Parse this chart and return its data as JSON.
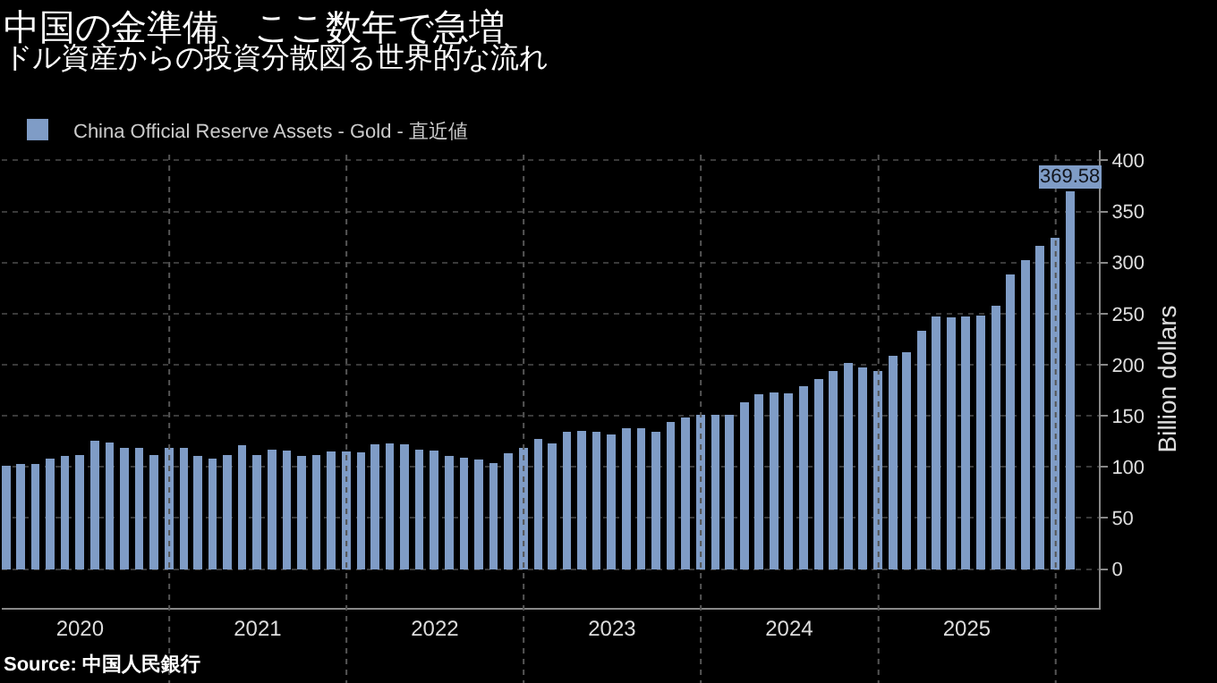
{
  "chart_data": {
    "type": "bar",
    "title": "中国の金準備、ここ数年で急増",
    "subtitle": "ドル資産からの投資分散図る世界的な流れ",
    "ylabel": "Billion dollars",
    "x": [
      "2020-01-31",
      "2020-02-29",
      "2020-03-31",
      "2020-04-30",
      "2020-05-31",
      "2020-06-30",
      "2020-07-31",
      "2020-08-31",
      "2020-09-30",
      "2020-10-31",
      "2020-11-30",
      "2020-12-31",
      "2021-01-31",
      "2021-02-28",
      "2021-03-31",
      "2021-04-30",
      "2021-05-31",
      "2021-06-30",
      "2021-07-31",
      "2021-08-31",
      "2021-09-30",
      "2021-10-31",
      "2021-11-30",
      "2021-12-31",
      "2022-01-31",
      "2022-02-28",
      "2022-03-31",
      "2022-04-30",
      "2022-05-31",
      "2022-06-30",
      "2022-07-31",
      "2022-08-31",
      "2022-09-30",
      "2022-10-31",
      "2022-11-30",
      "2022-12-31",
      "2023-01-31",
      "2023-02-28",
      "2023-03-31",
      "2023-04-30",
      "2023-05-31",
      "2023-06-30",
      "2023-07-31",
      "2023-08-31",
      "2023-09-30",
      "2023-10-31",
      "2023-11-30",
      "2023-12-31",
      "2024-01-31",
      "2024-02-29",
      "2024-03-31",
      "2024-04-30",
      "2024-05-31",
      "2024-06-30",
      "2024-07-31",
      "2024-08-31",
      "2024-09-30",
      "2024-10-31",
      "2024-11-30",
      "2024-12-31",
      "2025-01-31",
      "2025-02-28",
      "2025-03-31",
      "2025-04-30",
      "2025-05-31",
      "2025-06-30",
      "2025-07-31",
      "2025-08-31",
      "2025-09-30",
      "2025-10-31",
      "2025-11-30",
      "2025-12-31",
      "2026-01-31"
    ],
    "series": [
      {
        "name": "China Official Reserve Assets - Gold - 直近値",
        "color": "#7f9cc6",
        "values": [
          101,
          103,
          103,
          108,
          111,
          112,
          126,
          124,
          119,
          119,
          112,
          119,
          119,
          111,
          108,
          112,
          121,
          112,
          117,
          116,
          111,
          112,
          115,
          115,
          114,
          122,
          123,
          122,
          117,
          116,
          111,
          109,
          107,
          104,
          113,
          119,
          127,
          123,
          134,
          135,
          134,
          132,
          138,
          138,
          134,
          144,
          148,
          151,
          151,
          151,
          163,
          171,
          173,
          172,
          179,
          186,
          194,
          202,
          197,
          194,
          209,
          212,
          233,
          247,
          246,
          247,
          248,
          258,
          288,
          302,
          316,
          324,
          369.58
        ],
        "value_labels": [
          null,
          null,
          null,
          null,
          null,
          null,
          null,
          null,
          null,
          null,
          null,
          null,
          null,
          null,
          null,
          null,
          null,
          null,
          null,
          null,
          null,
          null,
          null,
          null,
          null,
          null,
          null,
          null,
          null,
          null,
          null,
          null,
          null,
          null,
          null,
          null,
          null,
          null,
          null,
          null,
          null,
          null,
          null,
          null,
          null,
          null,
          null,
          null,
          null,
          null,
          null,
          null,
          null,
          null,
          null,
          null,
          null,
          null,
          null,
          null,
          null,
          null,
          null,
          null,
          null,
          null,
          null,
          null,
          null,
          null,
          null,
          null,
          "369.58"
        ]
      }
    ],
    "xlim": [
      "2020-01-22",
      "2026-03-31"
    ],
    "xticks": [
      {
        "value": "2020-07-01",
        "label": "2020"
      },
      {
        "value": "2021-01-01",
        "label": null
      },
      {
        "value": "2021-07-02",
        "label": "2021"
      },
      {
        "value": "2022-01-01",
        "label": null
      },
      {
        "value": "2022-07-02",
        "label": "2022"
      },
      {
        "value": "2023-01-01",
        "label": null
      },
      {
        "value": "2023-07-02",
        "label": "2023"
      },
      {
        "value": "2024-01-01",
        "label": null
      },
      {
        "value": "2024-07-01",
        "label": "2024"
      },
      {
        "value": "2025-01-01",
        "label": null
      },
      {
        "value": "2025-07-02",
        "label": "2025"
      },
      {
        "value": "2026-01-01",
        "label": null
      }
    ],
    "ylim": [
      -38,
      410
    ],
    "yticks": [
      0,
      50,
      100,
      150,
      200,
      250,
      300,
      350,
      400
    ],
    "grid": true,
    "legend": "top left",
    "annotations": [
      "Source: 中国人民銀行"
    ]
  }
}
